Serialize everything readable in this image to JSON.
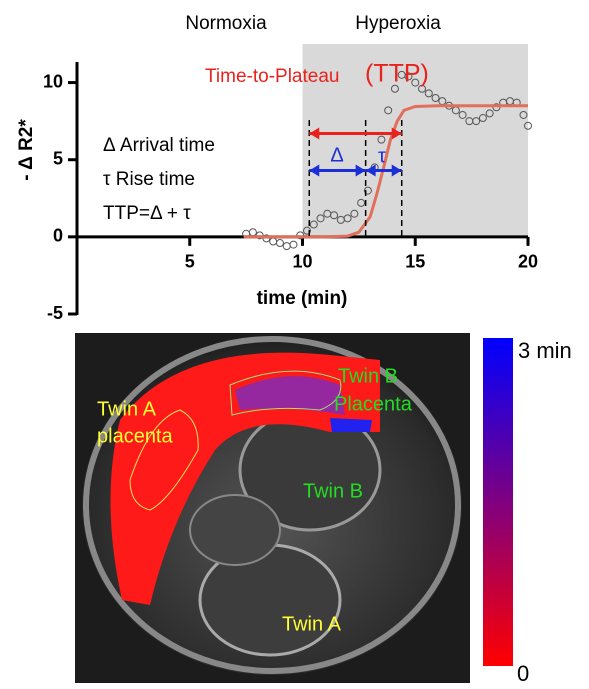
{
  "chart_data": {
    "type": "scatter",
    "xlim": [
      0,
      20
    ],
    "ylim": [
      -5,
      12.5
    ],
    "xticks": [
      5,
      10,
      15,
      20
    ],
    "yticks": [
      -5,
      0,
      5,
      10
    ],
    "xlabel": "time (min)",
    "ylabel": "- Δ R2*",
    "shade": [
      10,
      20
    ],
    "shade_color": "#d9d9d9",
    "series": [
      {
        "marker": "circle",
        "color": "#555555",
        "x": [
          7.5,
          7.8,
          8.1,
          8.4,
          8.7,
          9.0,
          9.3,
          9.6,
          9.9,
          10.2,
          10.5,
          10.8,
          11.1,
          11.4,
          11.7,
          12.0,
          12.3,
          12.6,
          12.9,
          13.2,
          13.5,
          13.8,
          14.1,
          14.4,
          14.7,
          15.0,
          15.3,
          15.6,
          15.9,
          16.2,
          16.5,
          16.8,
          17.1,
          17.4,
          17.7,
          18.0,
          18.3,
          18.6,
          18.9,
          19.2,
          19.5,
          19.8,
          20.0
        ],
        "values": [
          0.2,
          0.3,
          0.1,
          -0.1,
          -0.3,
          -0.4,
          -0.6,
          -0.5,
          0.1,
          0.4,
          0.8,
          1.2,
          1.5,
          1.4,
          1.1,
          1.2,
          1.5,
          2.2,
          3.0,
          4.5,
          6.3,
          8.2,
          9.6,
          10.5,
          10.4,
          10.0,
          9.6,
          9.3,
          9.0,
          8.8,
          8.5,
          8.2,
          7.9,
          7.5,
          7.5,
          7.7,
          8.0,
          8.4,
          8.7,
          8.8,
          8.7,
          7.9,
          7.2
        ]
      },
      {
        "marker": "line",
        "color": "#e0705a",
        "x": [
          7.4,
          10,
          11,
          12,
          12.5,
          13,
          13.3,
          13.6,
          13.9,
          14.2,
          14.5,
          15,
          16,
          20
        ],
        "values": [
          0,
          0,
          0,
          0.05,
          0.3,
          1.3,
          2.8,
          4.5,
          6.3,
          7.5,
          8.2,
          8.45,
          8.5,
          8.5
        ]
      }
    ],
    "vlines": [
      10.3,
      12.8,
      14.4
    ],
    "ttp_arrow_y": 6.7,
    "rise_arrow_y": 4.3,
    "annotations": {
      "normoxia": "Normoxia",
      "hyperoxia": "Hyperoxia",
      "ttp": "Time-to-Plateau",
      "ttp_abbr": "(TTP)",
      "delta_def": "Δ Arrival time",
      "tau_def": "τ  Rise time",
      "ttp_def": "TTP=Δ + τ",
      "delta": "Δ",
      "tau": "τ"
    }
  },
  "image": {
    "labels": {
      "twin_a_placenta_1": "Twin A",
      "twin_a_placenta_2": "placenta",
      "twin_b_placenta_1": "Twin B",
      "twin_b_placenta_2": "Placenta",
      "twin_b": "Twin B",
      "twin_a": "Twin A"
    },
    "colorbar": {
      "top_label": "3 min",
      "bottom_label": "0",
      "top_color": "#0000ff",
      "bottom_color": "#ff0000"
    }
  }
}
